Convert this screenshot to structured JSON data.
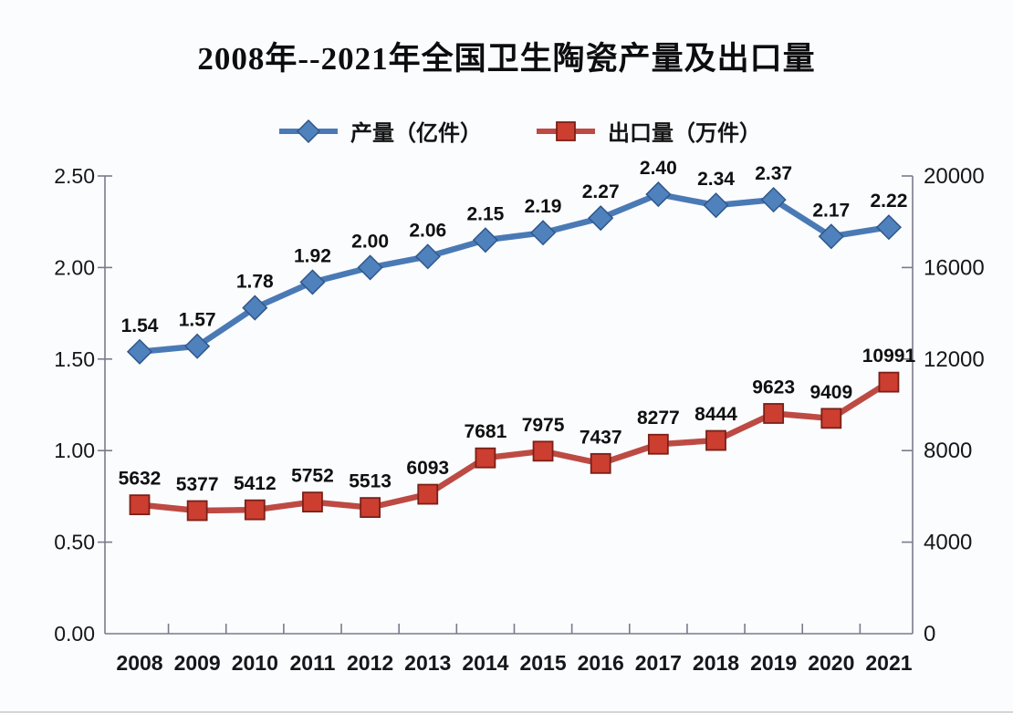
{
  "page": {
    "background": "#fbfcfe"
  },
  "colors": {
    "axis": "#7a7a8c",
    "text": "#16161c",
    "production_line": "#4a7ab5",
    "production_marker_fill": "#4f81bd",
    "production_marker_border": "#2f578a",
    "export_line": "#bd4a43",
    "export_marker_fill": "#cc3e30",
    "export_marker_border": "#7a2018"
  },
  "chart_data": {
    "type": "line",
    "title": "2008年--2021年全国卫生陶瓷产量及出口量",
    "legend_position": "top",
    "grid": "off",
    "categories": [
      "2008",
      "2009",
      "2010",
      "2011",
      "2012",
      "2013",
      "2014",
      "2015",
      "2016",
      "2017",
      "2018",
      "2019",
      "2020",
      "2021"
    ],
    "series": [
      {
        "name": "产量（亿件）",
        "axis": "left",
        "marker": "diamond",
        "color": "#4a7ab5",
        "marker_fill": "#4f81bd",
        "marker_border": "#2f578a",
        "values": [
          1.54,
          1.57,
          1.78,
          1.92,
          2.0,
          2.06,
          2.15,
          2.19,
          2.27,
          2.4,
          2.34,
          2.37,
          2.17,
          2.22
        ],
        "value_labels": [
          "1.54",
          "1.57",
          "1.78",
          "1.92",
          "2.00",
          "2.06",
          "2.15",
          "2.19",
          "2.27",
          "2.40",
          "2.34",
          "2.37",
          "2.17",
          "2.22"
        ]
      },
      {
        "name": "出口量（万件）",
        "axis": "right",
        "marker": "square",
        "color": "#bd4a43",
        "marker_fill": "#cc3e30",
        "marker_border": "#7a2018",
        "values": [
          5632,
          5377,
          5412,
          5752,
          5513,
          6093,
          7681,
          7975,
          7437,
          8277,
          8444,
          9623,
          9409,
          10991
        ],
        "value_labels": [
          "5632",
          "5377",
          "5412",
          "5752",
          "5513",
          "6093",
          "7681",
          "7975",
          "7437",
          "8277",
          "8444",
          "9623",
          "9409",
          "10991"
        ]
      }
    ],
    "left_axis": {
      "min": 0,
      "max": 2.5,
      "tick_values": [
        0,
        0.5,
        1,
        1.5,
        2,
        2.5
      ],
      "tick_labels": [
        "0.00",
        "0.50",
        "1.00",
        "1.50",
        "2.00",
        "2.50"
      ]
    },
    "right_axis": {
      "min": 0,
      "max": 20000,
      "tick_values": [
        0,
        4000,
        8000,
        12000,
        16000,
        20000
      ],
      "tick_labels": [
        "0",
        "4000",
        "8000",
        "12000",
        "16000",
        "20000"
      ]
    }
  }
}
